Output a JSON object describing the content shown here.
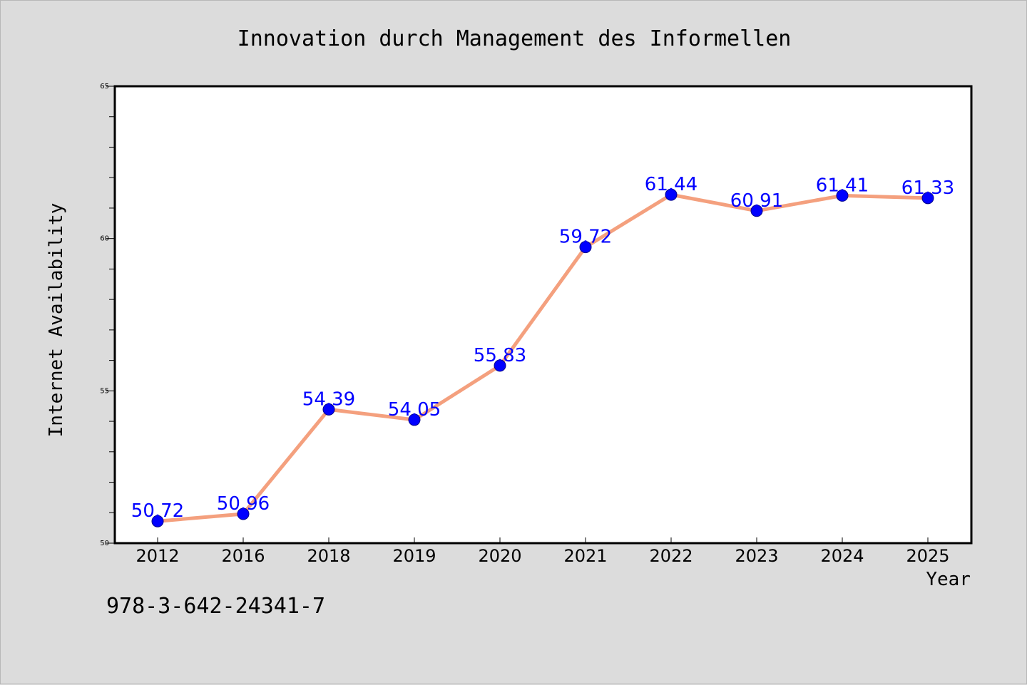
{
  "chart_data": {
    "type": "line",
    "title": "Innovation durch Management des Informellen",
    "xlabel": "Year",
    "ylabel": "Internet Availability",
    "categories": [
      "2012",
      "2016",
      "2018",
      "2019",
      "2020",
      "2021",
      "2022",
      "2023",
      "2024",
      "2025"
    ],
    "series": [
      {
        "values": [
          50.72,
          50.96,
          54.39,
          54.05,
          55.83,
          59.72,
          61.44,
          60.91,
          61.41,
          61.33
        ],
        "labels": [
          "50.72",
          "50.96",
          "54.39",
          "54.05",
          "55.83",
          "59.72",
          "61.44",
          "60.91",
          "61.41",
          "61.33"
        ],
        "line_color": "#f4a07e",
        "marker_color": "#0000ff"
      }
    ],
    "ylim": [
      50,
      65
    ],
    "yticks": [
      "50",
      "55",
      "60",
      "65"
    ],
    "grid": false,
    "legend": "none"
  },
  "footnote": "978-3-642-24341-7",
  "colors": {
    "background": "#dcdcdc",
    "plot_background": "#ffffff",
    "line": "#f4a07e",
    "marker": "#0000ff",
    "data_label": "#0000ff"
  }
}
